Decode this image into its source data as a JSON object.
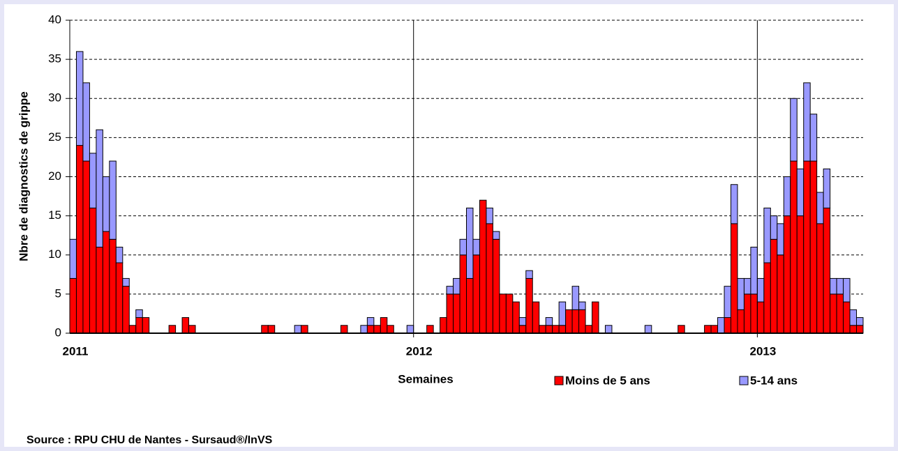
{
  "chart_data": {
    "type": "stacked_bar",
    "y_label": "Nbre de diagnostics de grippe",
    "x_label": "Semaines",
    "source": "Source : RPU CHU de Nantes - Sursaud®/InVS",
    "categories": [
      "2011",
      null,
      null,
      null,
      null,
      null,
      null,
      null,
      null,
      null,
      null,
      null,
      null,
      null,
      null,
      null,
      null,
      null,
      null,
      null,
      null,
      null,
      null,
      null,
      null,
      null,
      null,
      null,
      null,
      null,
      null,
      null,
      null,
      null,
      null,
      null,
      null,
      null,
      null,
      null,
      null,
      null,
      null,
      null,
      null,
      null,
      null,
      null,
      null,
      null,
      null,
      null,
      "2012",
      null,
      null,
      null,
      null,
      null,
      null,
      null,
      null,
      null,
      null,
      null,
      null,
      null,
      null,
      null,
      null,
      null,
      null,
      null,
      null,
      null,
      null,
      null,
      null,
      null,
      null,
      null,
      null,
      null,
      null,
      null,
      null,
      null,
      null,
      null,
      null,
      null,
      null,
      null,
      null,
      null,
      null,
      null,
      null,
      null,
      null,
      null,
      null,
      null,
      null,
      null,
      "2013",
      null,
      null,
      null,
      null,
      null,
      null,
      null,
      null,
      null,
      null,
      null,
      null,
      null,
      null,
      null
    ],
    "series": [
      {
        "name": "Moins de 5 ans",
        "color": "#ff0000",
        "values": [
          7,
          24,
          22,
          16,
          11,
          13,
          12,
          9,
          6,
          1,
          2,
          2,
          0,
          0,
          0,
          1,
          0,
          2,
          1,
          0,
          0,
          0,
          0,
          0,
          0,
          0,
          0,
          0,
          0,
          1,
          1,
          0,
          0,
          0,
          0,
          1,
          0,
          0,
          0,
          0,
          0,
          1,
          0,
          0,
          0,
          1,
          1,
          2,
          1,
          0,
          0,
          0,
          0,
          0,
          1,
          0,
          2,
          5,
          5,
          10,
          7,
          10,
          17,
          14,
          12,
          5,
          5,
          4,
          1,
          7,
          4,
          1,
          1,
          1,
          1,
          3,
          3,
          3,
          1,
          4,
          0,
          0,
          0,
          0,
          0,
          0,
          0,
          0,
          0,
          0,
          0,
          0,
          1,
          0,
          0,
          0,
          1,
          1,
          0,
          2,
          14,
          3,
          5,
          5,
          4,
          9,
          12,
          10,
          15,
          22,
          15,
          22,
          22,
          14,
          16,
          5,
          5,
          4,
          1,
          1
        ]
      },
      {
        "name": "5-14 ans",
        "color": "#9999ff",
        "values": [
          5,
          12,
          10,
          7,
          15,
          7,
          10,
          2,
          1,
          0,
          1,
          0,
          0,
          0,
          0,
          0,
          0,
          0,
          0,
          0,
          0,
          0,
          0,
          0,
          0,
          0,
          0,
          0,
          0,
          0,
          0,
          0,
          0,
          0,
          1,
          0,
          0,
          0,
          0,
          0,
          0,
          0,
          0,
          0,
          1,
          1,
          0,
          0,
          0,
          0,
          0,
          1,
          0,
          0,
          0,
          0,
          0,
          1,
          2,
          2,
          9,
          2,
          0,
          2,
          1,
          0,
          0,
          0,
          1,
          1,
          0,
          0,
          1,
          0,
          3,
          0,
          3,
          1,
          0,
          0,
          0,
          1,
          0,
          0,
          0,
          0,
          0,
          1,
          0,
          0,
          0,
          0,
          0,
          0,
          0,
          0,
          0,
          0,
          2,
          4,
          5,
          4,
          2,
          6,
          3,
          7,
          3,
          4,
          5,
          8,
          6,
          10,
          6,
          4,
          5,
          2,
          2,
          3,
          2,
          1
        ]
      }
    ],
    "ylim": [
      0,
      40
    ],
    "yticks": [
      0,
      5,
      10,
      15,
      20,
      25,
      30,
      35,
      40
    ],
    "grid": true
  }
}
